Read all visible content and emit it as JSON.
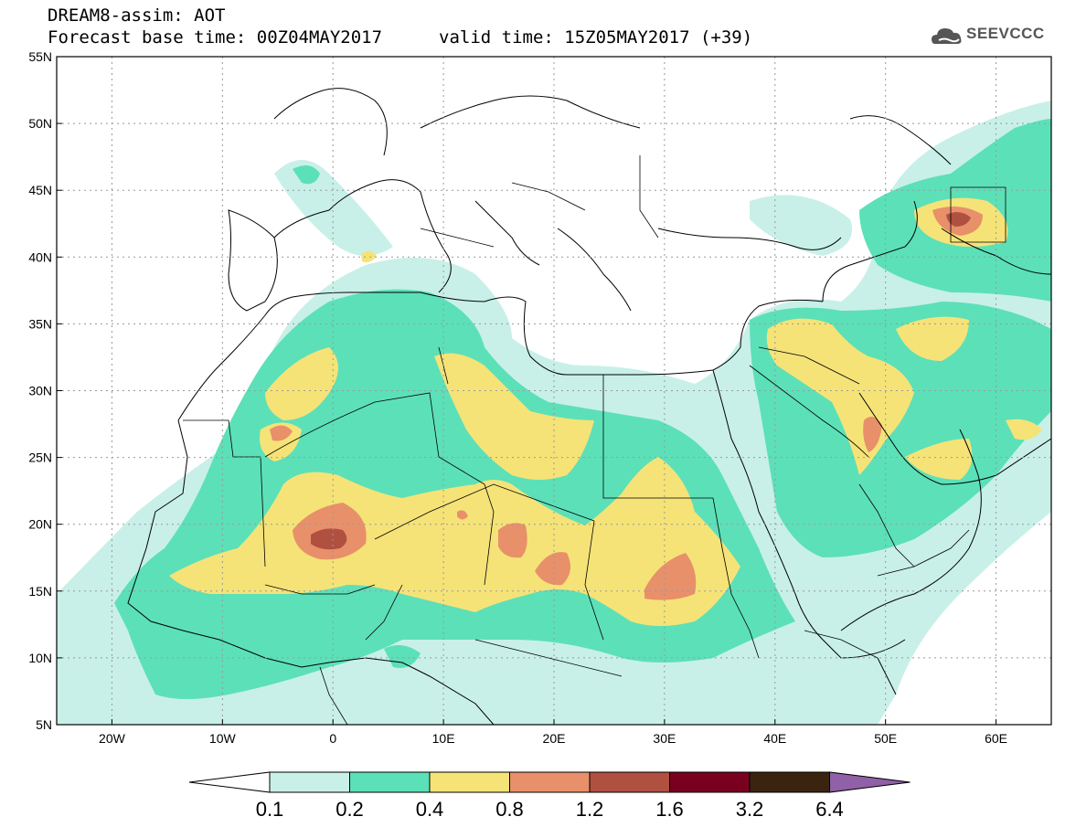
{
  "header": {
    "line1": "DREAM8-assim: AOT",
    "line2": "Forecast base time: 00Z04MAY2017",
    "valid": "valid time: 15Z05MAY2017 (+39)",
    "logo_text": "SEEVCCC",
    "logo_icon": "cloud-logo-icon"
  },
  "map": {
    "lon_range": [
      -25,
      65
    ],
    "lat_range": [
      5,
      55
    ],
    "lon_ticks": [
      -20,
      -10,
      0,
      10,
      20,
      30,
      40,
      50,
      60
    ],
    "lon_tick_labels": [
      "20W",
      "10W",
      "0",
      "10E",
      "20E",
      "30E",
      "40E",
      "50E",
      "60E"
    ],
    "lat_ticks": [
      5,
      10,
      15,
      20,
      25,
      30,
      35,
      40,
      45,
      50,
      55
    ],
    "lat_tick_labels": [
      "5N",
      "10N",
      "15N",
      "20N",
      "25N",
      "30N",
      "35N",
      "40N",
      "45N",
      "50N",
      "55N"
    ],
    "gridlines": true
  },
  "colorbar": {
    "levels": [
      "0.1",
      "0.2",
      "0.4",
      "0.8",
      "1.2",
      "1.6",
      "3.2",
      "6.4"
    ],
    "colors": [
      "#ffffff",
      "#c8f0e8",
      "#5ce0b8",
      "#f5e378",
      "#e8906a",
      "#b05040",
      "#7a0020",
      "#3a2410",
      "#9060a8"
    ]
  }
}
